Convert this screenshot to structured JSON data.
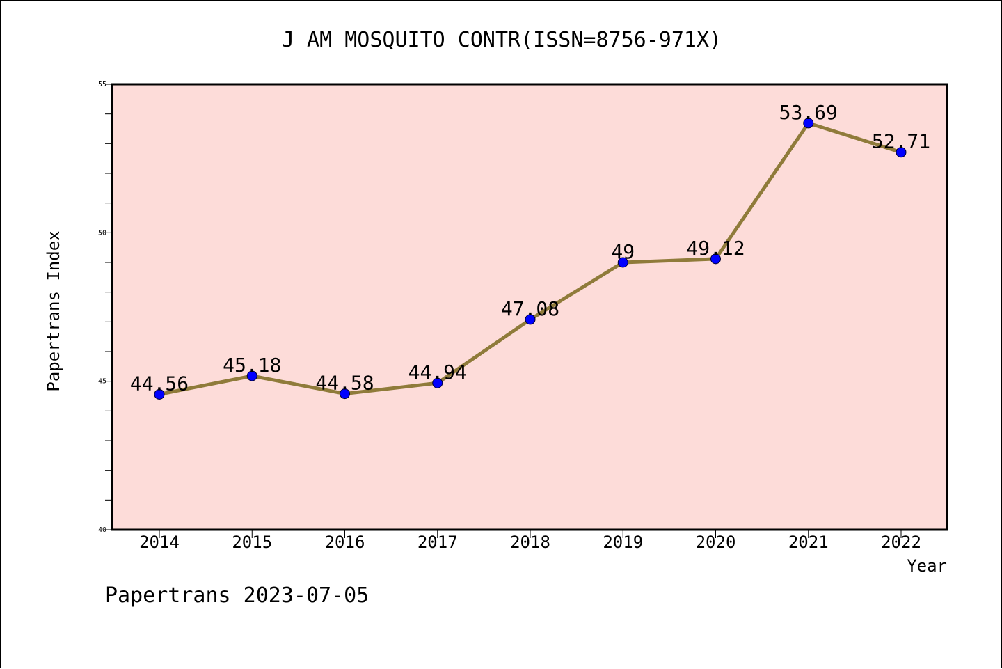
{
  "chart_data": {
    "type": "line",
    "title": "J AM MOSQUITO CONTR(ISSN=8756-971X)",
    "xlabel": "Year",
    "ylabel": "Papertrans Index",
    "categories": [
      "2014",
      "2015",
      "2016",
      "2017",
      "2018",
      "2019",
      "2020",
      "2021",
      "2022"
    ],
    "series": [
      {
        "values": [
          44.56,
          45.18,
          44.58,
          44.94,
          47.08,
          49,
          49.12,
          53.69,
          52.71
        ],
        "labels": [
          "44.56",
          "45.18",
          "44.58",
          "44.94",
          "47.08",
          "49",
          "49.12",
          "53.69",
          "52.71"
        ]
      }
    ],
    "ylim": [
      40,
      55
    ],
    "yticks": [
      "40",
      "45",
      "50",
      "55"
    ],
    "grid": false,
    "legend": "none",
    "colors": {
      "plot_background": "#fddcd9",
      "line": "#8f7b3a",
      "marker": "#0000ff"
    }
  },
  "footer": {
    "text": "Papertrans 2023-07-05"
  }
}
